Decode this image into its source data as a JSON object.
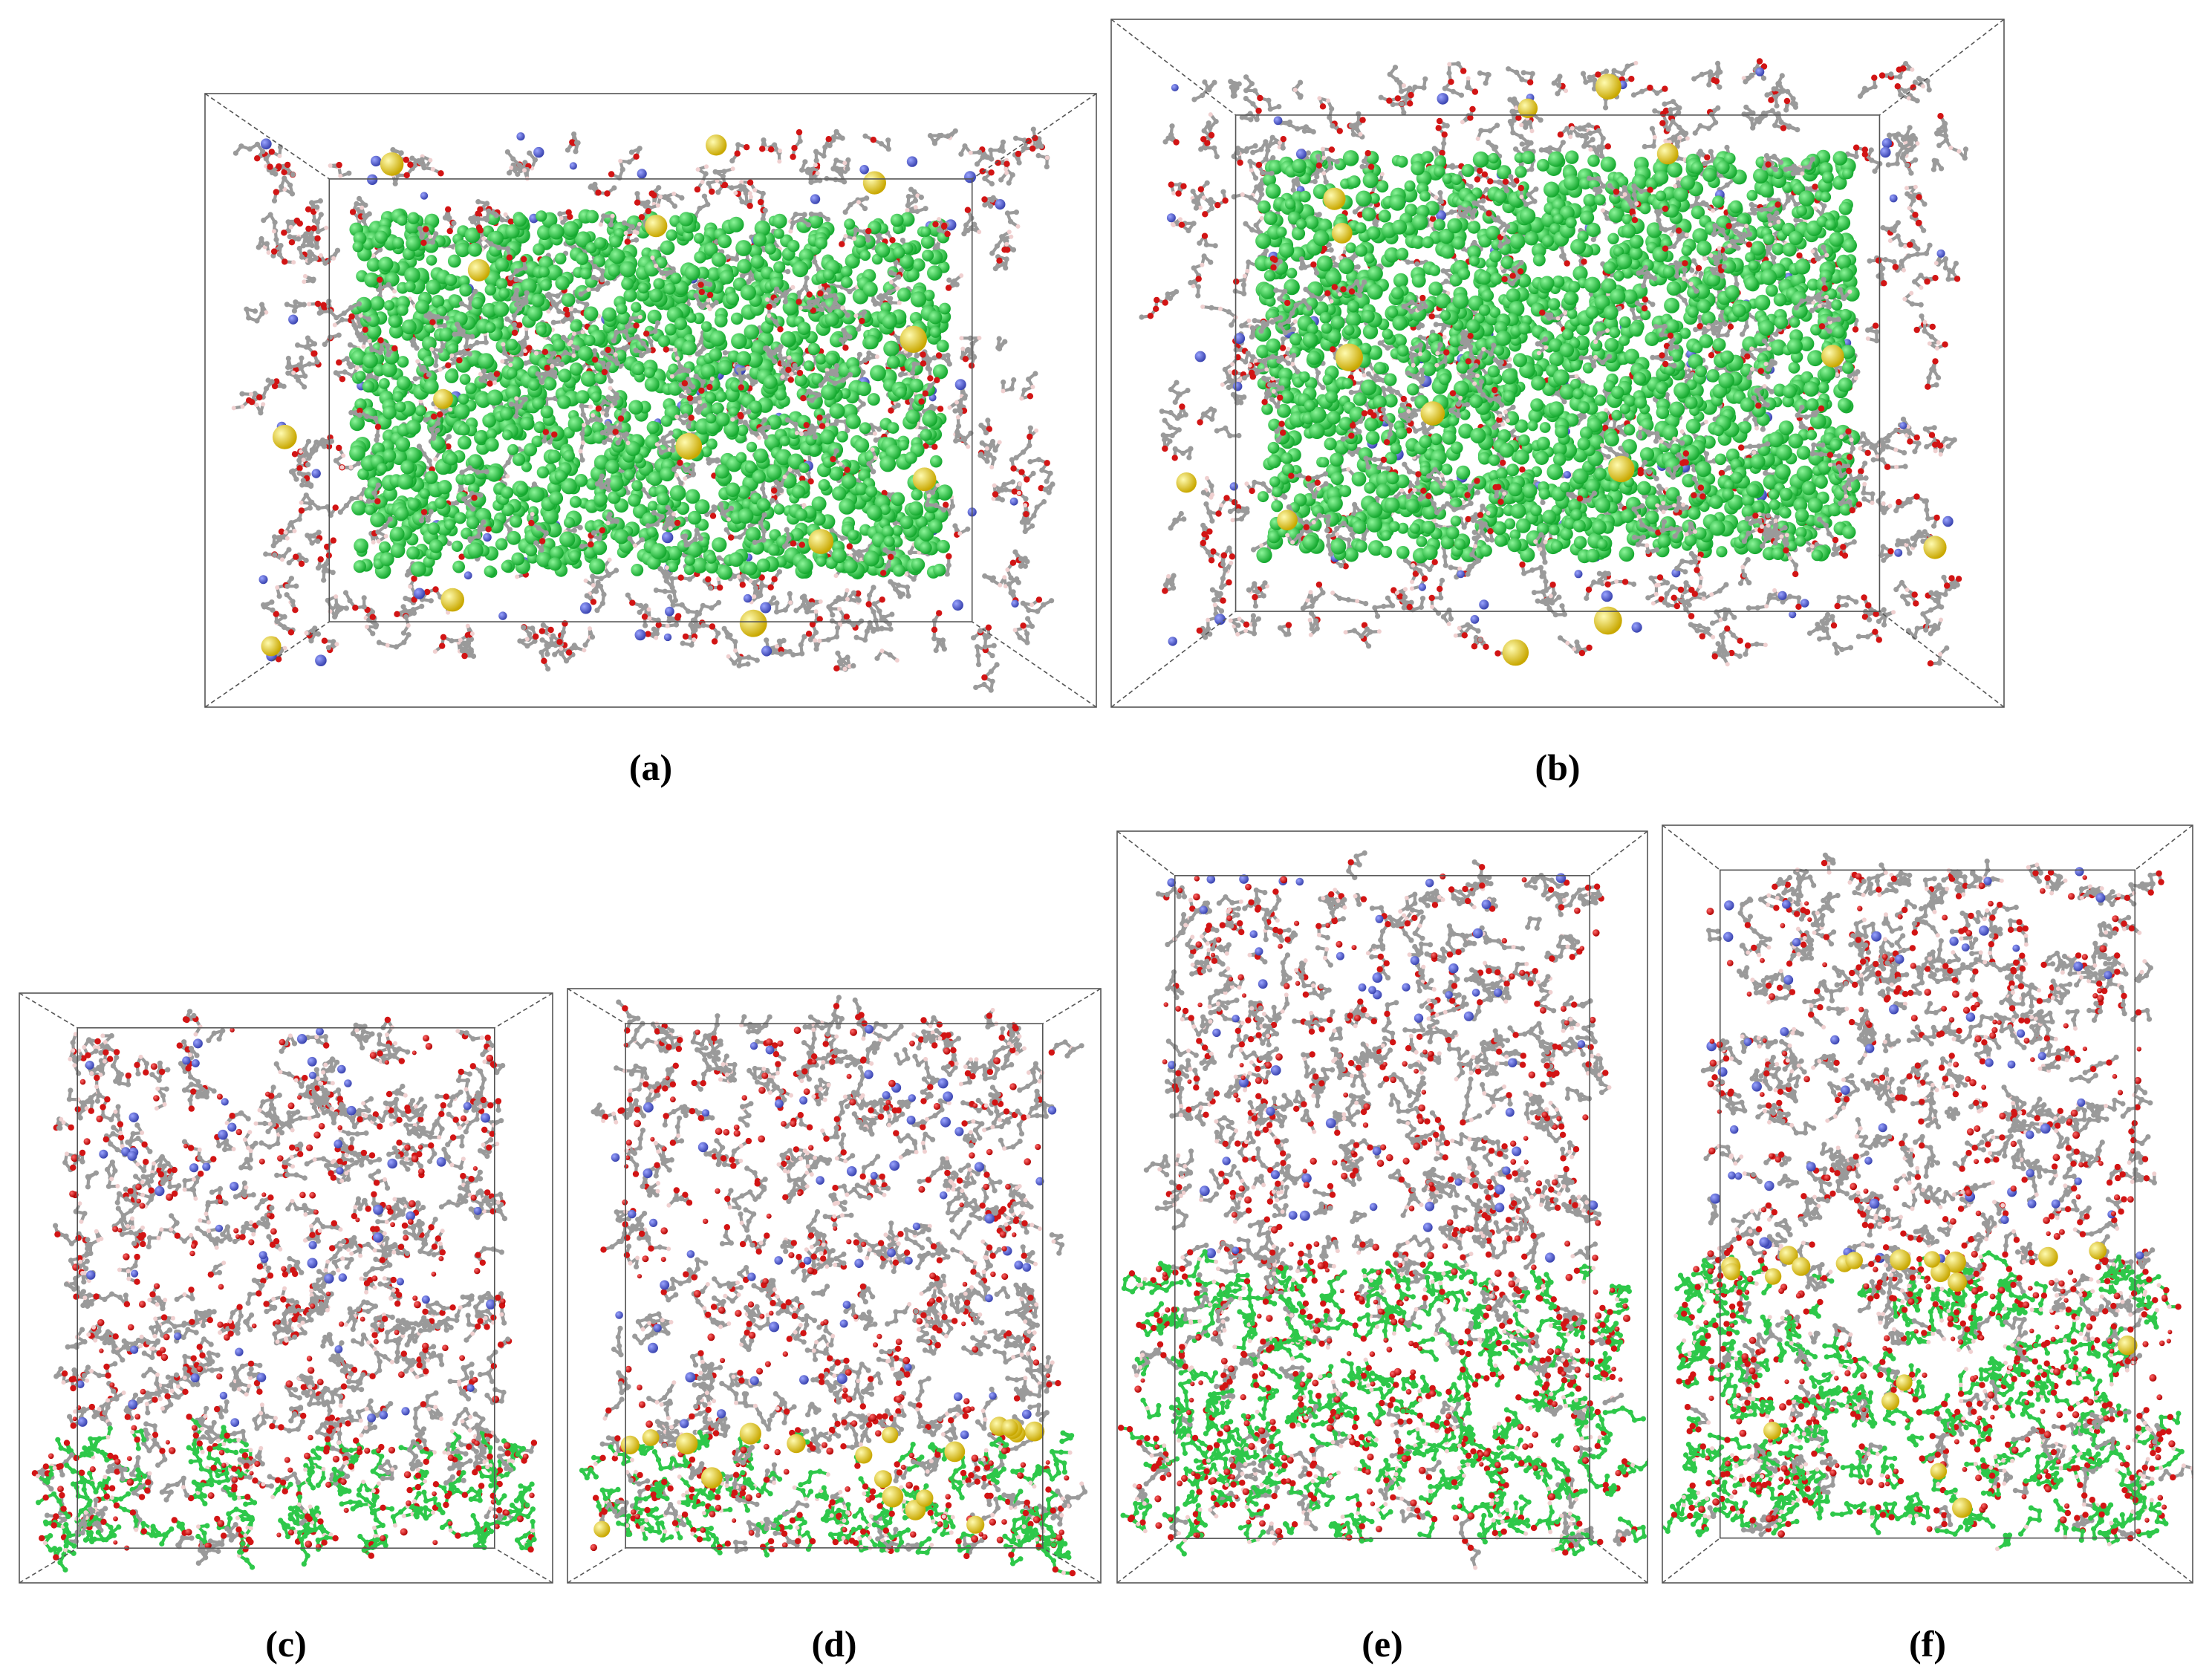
{
  "figure": {
    "panels": [
      {
        "id": "a",
        "label": "(a)",
        "layout": "horizontal",
        "slab": "none",
        "ions_at_interface": false
      },
      {
        "id": "b",
        "label": "(b)",
        "layout": "horizontal",
        "slab": "none",
        "ions_at_interface": false
      },
      {
        "id": "c",
        "label": "(c)",
        "layout": "vertical",
        "slab": "single",
        "ions_at_interface": false
      },
      {
        "id": "d",
        "label": "(d)",
        "layout": "vertical",
        "slab": "single",
        "ions_at_interface": true
      },
      {
        "id": "e",
        "label": "(e)",
        "layout": "vertical",
        "slab": "double",
        "ions_at_interface": false
      },
      {
        "id": "f",
        "label": "(f)",
        "layout": "vertical",
        "slab": "double",
        "ions_at_interface": true
      }
    ]
  },
  "colors": {
    "carbon": "#9a9a9a",
    "hydrogen": "#f0d0d0",
    "oxygen": "#d21414",
    "nitrogen": "#4a56c8",
    "green": "#2ec84a",
    "ion": "#f2e21a",
    "box_line": "#555555"
  }
}
